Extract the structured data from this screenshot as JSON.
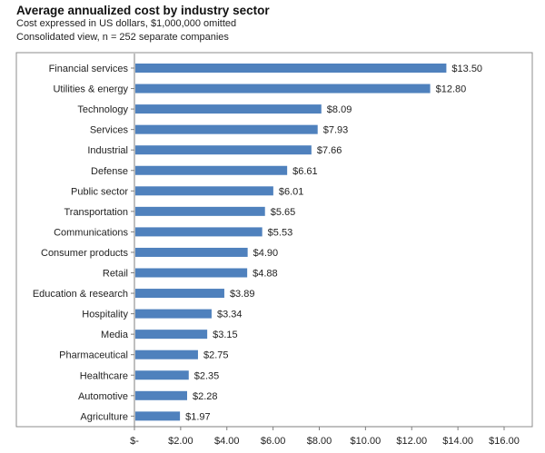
{
  "chart_data": {
    "type": "bar",
    "orientation": "horizontal",
    "title": "Average annualized cost by industry sector",
    "subtitle": [
      "Cost expressed in US dollars, $1,000,000 omitted",
      "Consolidated view, n = 252 separate companies"
    ],
    "xlabel": "",
    "ylabel": "",
    "xlim": [
      0,
      16
    ],
    "grid": false,
    "legend": "none",
    "bar_color": "#4f81bd",
    "categories": [
      "Financial services",
      "Utilities & energy",
      "Technology",
      "Services",
      "Industrial",
      "Defense",
      "Public sector",
      "Transportation",
      "Communications",
      "Consumer products",
      "Retail",
      "Education & research",
      "Hospitality",
      "Media",
      "Pharmaceutical",
      "Healthcare",
      "Automotive",
      "Agriculture"
    ],
    "values": [
      13.5,
      12.8,
      8.09,
      7.93,
      7.66,
      6.61,
      6.01,
      5.65,
      5.53,
      4.9,
      4.88,
      3.89,
      3.34,
      3.15,
      2.75,
      2.35,
      2.28,
      1.97
    ],
    "value_labels": [
      "$13.50",
      "$12.80",
      "$8.09",
      "$7.93",
      "$7.66",
      "$6.61",
      "$6.01",
      "$5.65",
      "$5.53",
      "$4.90",
      "$4.88",
      "$3.89",
      "$3.34",
      "$3.15",
      "$2.75",
      "$2.35",
      "$2.28",
      "$1.97"
    ],
    "x_ticks": [
      0,
      2,
      4,
      6,
      8,
      10,
      12,
      14,
      16
    ],
    "x_tick_labels": [
      "$-",
      "$2.00",
      "$4.00",
      "$6.00",
      "$8.00",
      "$10.00",
      "$12.00",
      "$14.00",
      "$16.00"
    ]
  }
}
